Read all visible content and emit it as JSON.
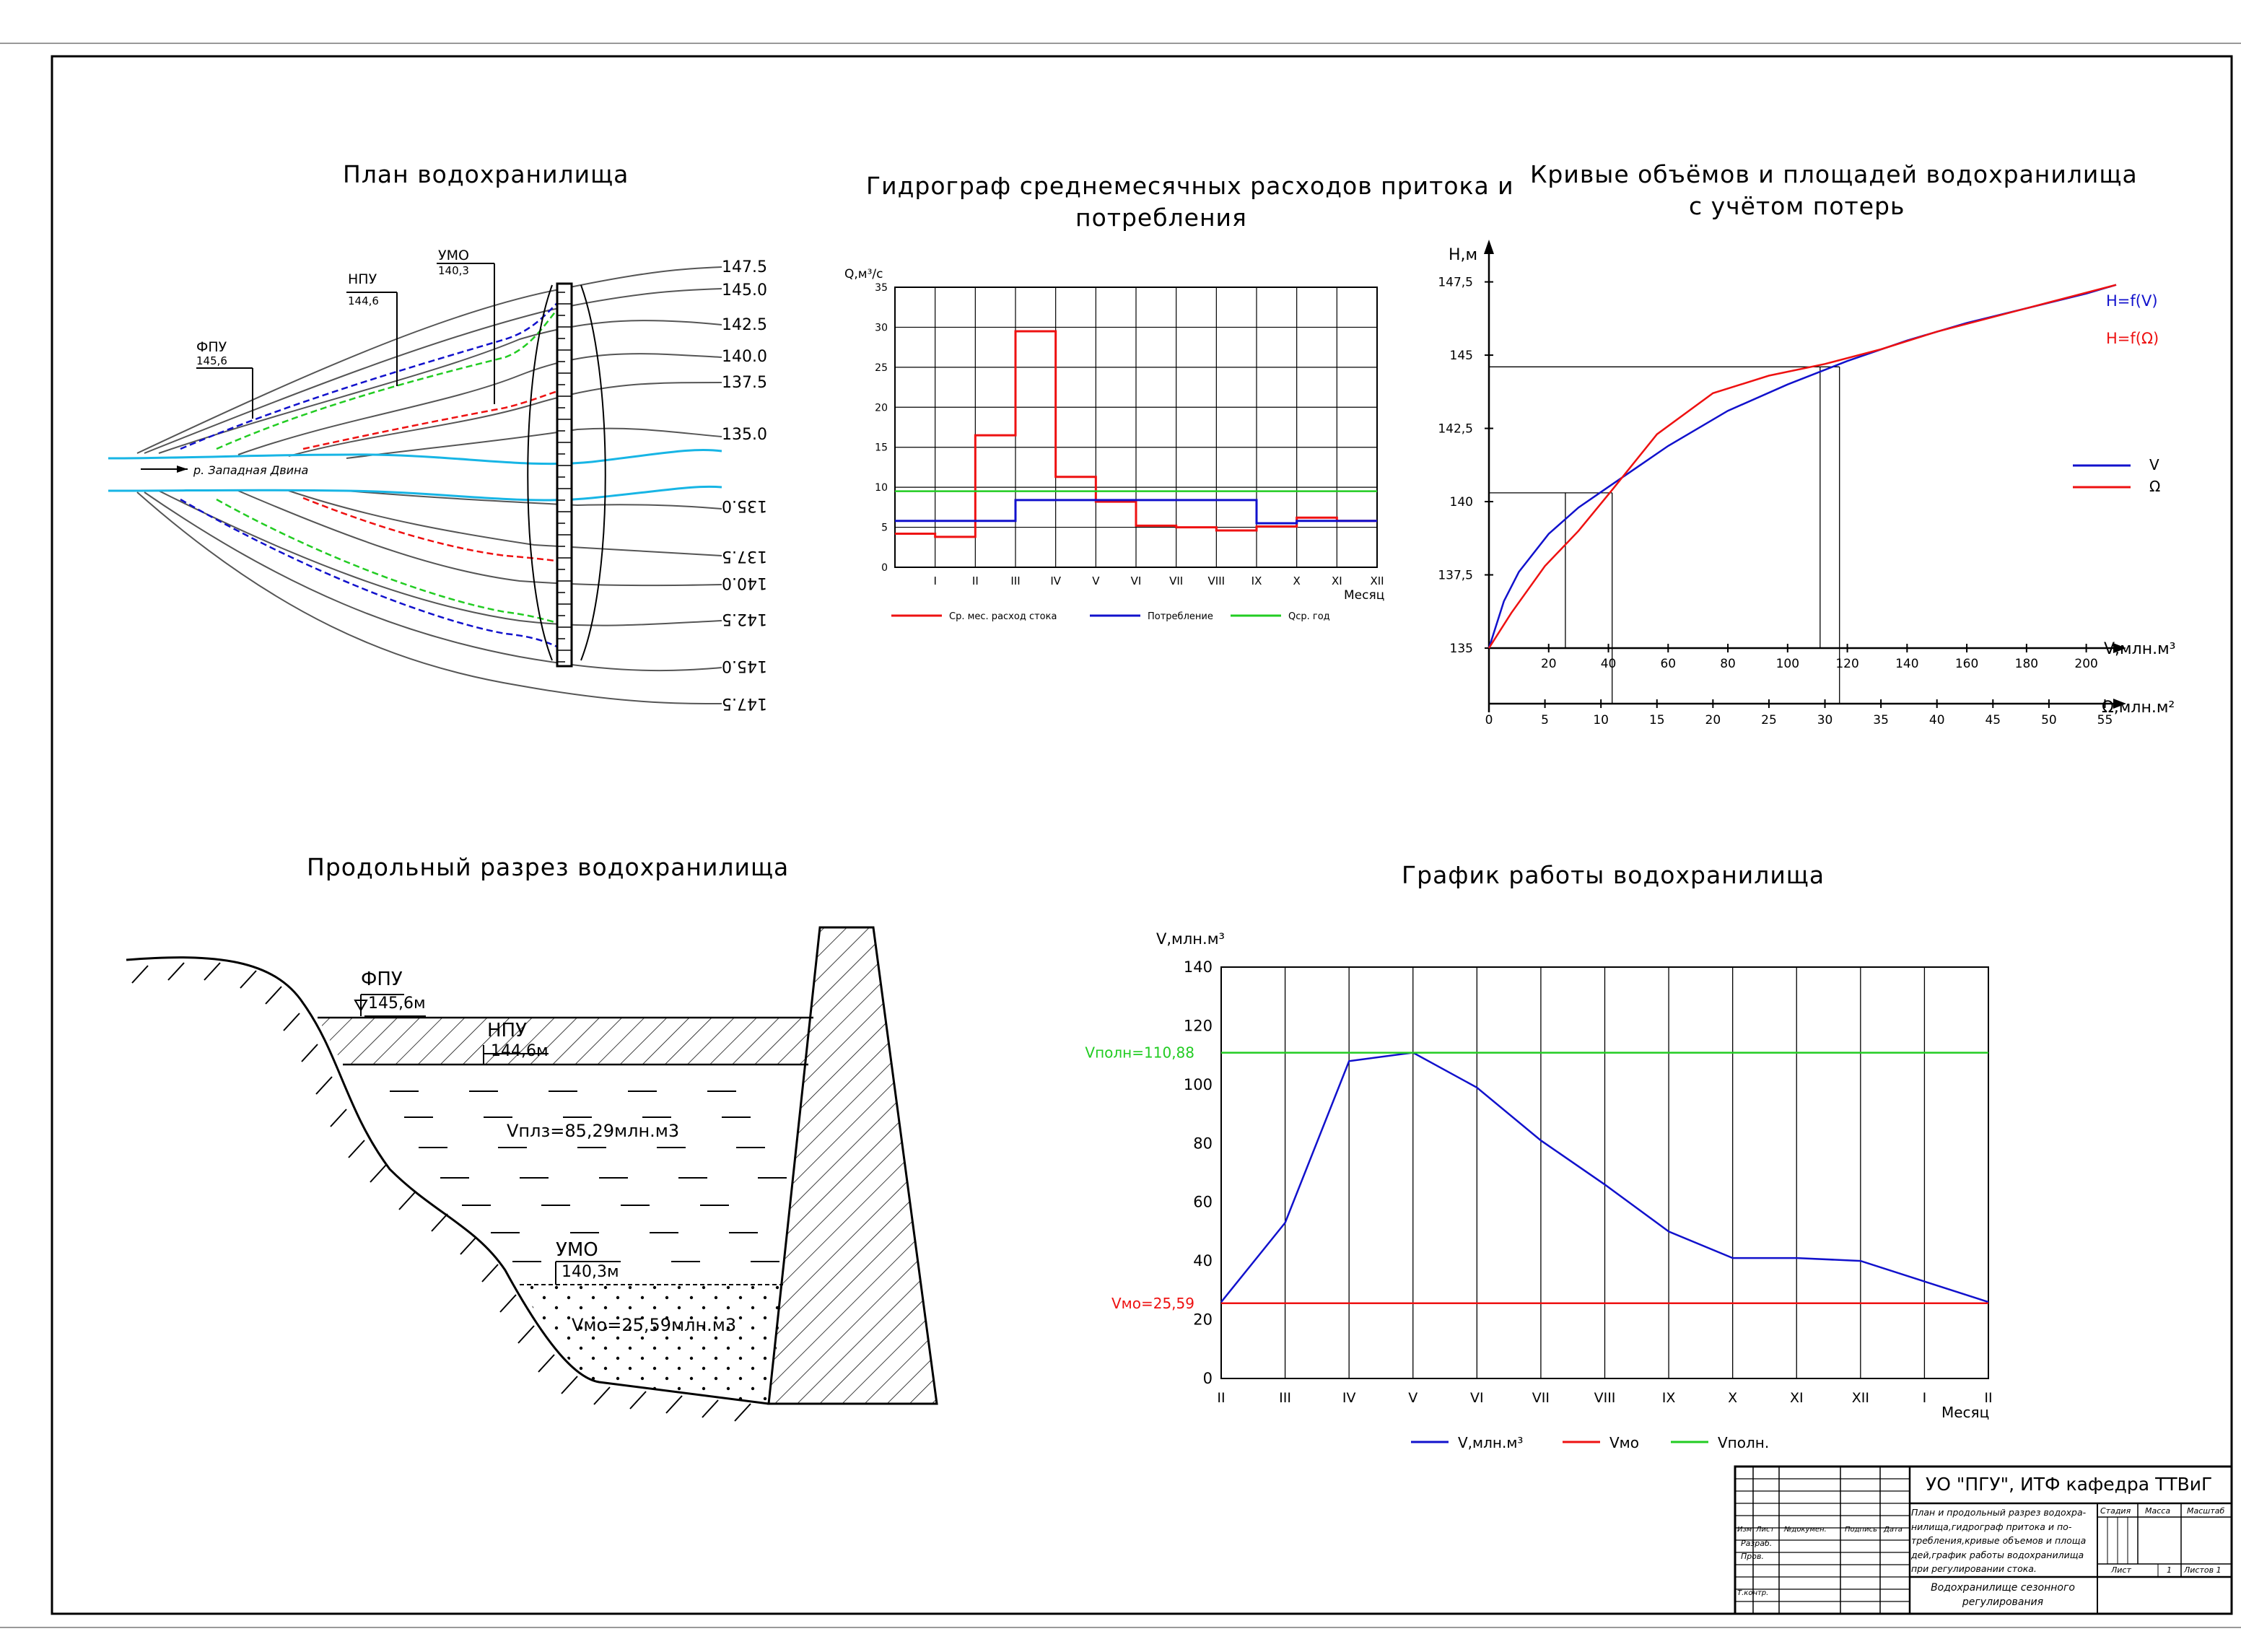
{
  "plan": {
    "title": "План водохранилища",
    "river_label": "р. Западная Двина",
    "levels": [
      {
        "name": "ФПУ",
        "value": "145,6"
      },
      {
        "name": "НПУ",
        "value": "144,6"
      },
      {
        "name": "УМО",
        "value": "140,3"
      }
    ],
    "contours_top": [
      "147.5",
      "145.0",
      "142.5",
      "140.0",
      "137.5",
      "135.0"
    ],
    "contours_bottom": [
      "135.0",
      "137.5",
      "140.0",
      "142.5",
      "145.0",
      "147.5"
    ]
  },
  "hydro": {
    "title_line1": "Гидрограф среднемесячных расходов притока и",
    "title_line2": "потребления",
    "ylabel": "Q,м³/с",
    "xlabel": "Месяц",
    "legend": [
      "Ср. мес. расход стока",
      "Потребление",
      "Qср. год"
    ],
    "colors": [
      "#e11",
      "#11c",
      "#2c2"
    ],
    "chart_data": {
      "type": "line",
      "categories": [
        "I",
        "II",
        "III",
        "IV",
        "V",
        "VI",
        "VII",
        "VIII",
        "IX",
        "X",
        "XI",
        "XII"
      ],
      "ylim": [
        0,
        35
      ],
      "yticks": [
        0,
        5,
        10,
        15,
        20,
        25,
        30,
        35
      ],
      "series": [
        {
          "name": "Ср. мес. расход стока",
          "values": [
            4.2,
            3.8,
            16.5,
            29.5,
            11.3,
            8.2,
            5.2,
            5.0,
            4.6,
            5.1,
            6.2,
            5.8
          ]
        },
        {
          "name": "Потребление",
          "values": [
            5.8,
            5.8,
            5.8,
            8.4,
            8.4,
            8.4,
            8.4,
            8.4,
            8.4,
            5.5,
            5.8,
            5.8
          ]
        },
        {
          "name": "Qср. год",
          "values": [
            9.5,
            9.5,
            9.5,
            9.5,
            9.5,
            9.5,
            9.5,
            9.5,
            9.5,
            9.5,
            9.5,
            9.5
          ]
        }
      ]
    }
  },
  "curves": {
    "title_line1": "Кривые объёмов и площадей водохранилища",
    "title_line2": "с учётом потерь",
    "ylabel": "Н,м",
    "xlabel_v": "V,млн.м³",
    "xlabel_w": "Ω,млн.м²",
    "label_hv": "Н=f(V)",
    "label_hw": "Н=f(Ω)",
    "legend": [
      "V",
      "Ω"
    ],
    "colors": [
      "#11c",
      "#e11"
    ],
    "chart_data": {
      "type": "line",
      "y_ticks": [
        "135",
        "137,5",
        "140",
        "142,5",
        "145",
        "147,5"
      ],
      "ylim": [
        135,
        148.5
      ],
      "v_ticks": [
        "20",
        "40",
        "60",
        "80",
        "100",
        "120",
        "140",
        "160",
        "180",
        "200"
      ],
      "vlim": [
        0,
        210
      ],
      "w_ticks": [
        "0",
        "5",
        "10",
        "15",
        "20",
        "25",
        "30",
        "35",
        "40",
        "45",
        "50",
        "55"
      ],
      "wlim": [
        0,
        56
      ],
      "series": [
        {
          "name": "V",
          "x": [
            0,
            5,
            10,
            20,
            30,
            40,
            50,
            60,
            80,
            100,
            120,
            140,
            160,
            180,
            200,
            210
          ],
          "y": [
            135,
            136.6,
            137.6,
            138.9,
            139.8,
            140.5,
            141.2,
            141.9,
            143.1,
            144.0,
            144.8,
            145.5,
            146.1,
            146.6,
            147.1,
            147.4
          ]
        },
        {
          "name": "Ω",
          "x": [
            0,
            2,
            5,
            8,
            11,
            15,
            20,
            25,
            30,
            35,
            40,
            45,
            50,
            56
          ],
          "y": [
            135,
            136.2,
            137.8,
            139.0,
            140.4,
            142.3,
            143.7,
            144.3,
            144.7,
            145.2,
            145.8,
            146.3,
            146.8,
            147.4
          ]
        }
      ]
    }
  },
  "section": {
    "title": "Продольный разрез водохранилища",
    "fpu_name": "ФПУ",
    "fpu_value": "145,6м",
    "npu_name": "НПУ",
    "npu_value": "144,6м",
    "umo_name": "УМО",
    "umo_value": "140,3м",
    "vplz": "Vплз=85,29млн.м3",
    "vmo": "Vмо=25,59млн.м3"
  },
  "operation": {
    "title": "График работы водохранилища",
    "ylabel": "V,млн.м³",
    "xlabel": "Месяц",
    "vfull_label": "Vполн=110,88",
    "vmo_label": "Vмо=25,59",
    "legend": [
      "V,млн.м³",
      "Vмо",
      "Vполн."
    ],
    "colors": [
      "#11c",
      "#e11",
      "#2c2"
    ],
    "chart_data": {
      "type": "line",
      "categories": [
        "II",
        "III",
        "IV",
        "V",
        "VI",
        "VII",
        "VIII",
        "IX",
        "X",
        "XI",
        "XII",
        "I",
        "II"
      ],
      "ylim": [
        0,
        140
      ],
      "yticks": [
        0,
        20,
        40,
        60,
        80,
        100,
        120,
        140
      ],
      "series": [
        {
          "name": "V,млн.м³",
          "values": [
            26,
            53,
            108,
            110.9,
            99,
            81,
            66,
            50,
            41,
            41,
            40,
            33,
            26
          ]
        },
        {
          "name": "Vмо",
          "values": [
            25.59,
            25.59,
            25.59,
            25.59,
            25.59,
            25.59,
            25.59,
            25.59,
            25.59,
            25.59,
            25.59,
            25.59,
            25.59
          ]
        },
        {
          "name": "Vполн.",
          "values": [
            110.88,
            110.88,
            110.88,
            110.88,
            110.88,
            110.88,
            110.88,
            110.88,
            110.88,
            110.88,
            110.88,
            110.88,
            110.88
          ]
        }
      ]
    }
  },
  "stamp": {
    "org": "УО \"ПГУ\", ИТФ кафедра ТТВиГ",
    "description": [
      "План и продольный разрез водохра-",
      "нилища,гидрограф притока и по-",
      "требления,кривые объемов и площа",
      "дей,график работы водохранилища",
      "при регулировании стока."
    ],
    "name": [
      "Водохранилище сезонного",
      "регулирования"
    ],
    "col_headers": [
      "Изм",
      "Лист",
      "№докумен.",
      "Подпись",
      "Дата"
    ],
    "rows": [
      "Разраб.",
      "Пров.",
      "Т.контр."
    ],
    "stage_headers": [
      "Стадия",
      "Масса",
      "Масштаб"
    ],
    "sheet": "Лист",
    "sheet_no": "1",
    "sheets": "Листов 1"
  }
}
